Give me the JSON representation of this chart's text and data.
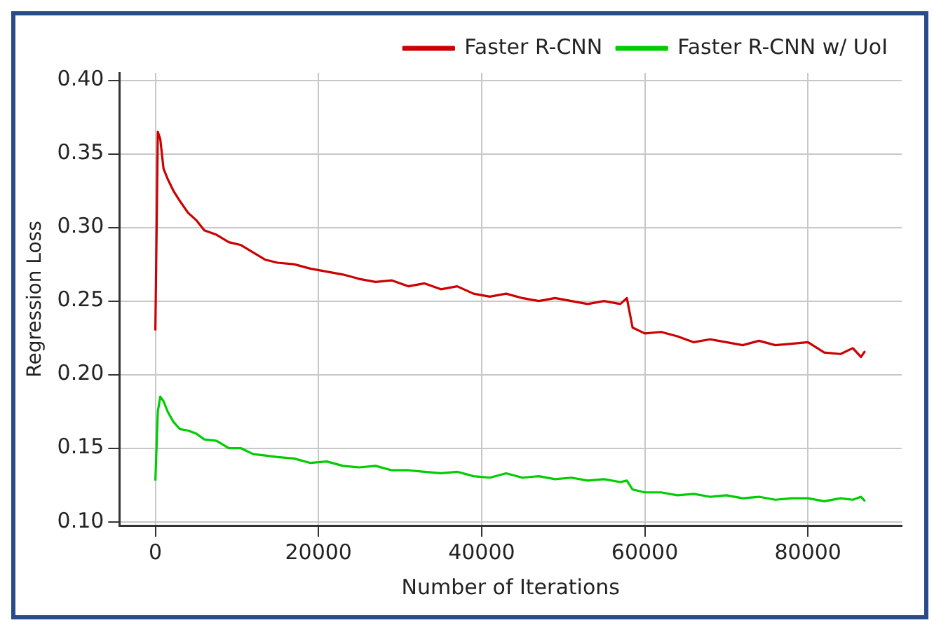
{
  "chart_data": {
    "type": "line",
    "xlabel": "Number of Iterations",
    "ylabel": "Regression Loss",
    "xlim": [
      -4400,
      91500
    ],
    "xticks": [
      0,
      20000,
      40000,
      60000,
      80000
    ],
    "ylim": [
      0.0975,
      0.405
    ],
    "yticks": [
      {
        "value": 0.1,
        "label": "0.10"
      },
      0.15,
      {
        "value": 0.2,
        "label": "0.20"
      },
      0.25,
      {
        "value": 0.3,
        "label": "0.30"
      },
      0.35,
      {
        "value": 0.4,
        "label": "0.40"
      }
    ],
    "grid": true,
    "legend": "top right",
    "marker": "none",
    "line_style": "solid",
    "series": [
      {
        "name": "Faster R-CNN",
        "color": "#cc0000",
        "x": [
          0,
          300,
          600,
          1000,
          1500,
          2200,
          3000,
          4000,
          5000,
          6000,
          7500,
          9000,
          10500,
          12000,
          13500,
          15000,
          17000,
          19000,
          21000,
          23000,
          25000,
          27000,
          29000,
          31000,
          33000,
          35000,
          37000,
          39000,
          41000,
          43000,
          45000,
          47000,
          49000,
          51000,
          53000,
          55000,
          57000,
          57800,
          58500,
          60000,
          62000,
          64000,
          66000,
          68000,
          70000,
          72000,
          74000,
          76000,
          78000,
          80000,
          82000,
          84000,
          85500,
          86500,
          87000
        ],
        "values": [
          0.23,
          0.365,
          0.36,
          0.34,
          0.333,
          0.325,
          0.318,
          0.31,
          0.305,
          0.298,
          0.295,
          0.29,
          0.288,
          0.283,
          0.278,
          0.276,
          0.275,
          0.272,
          0.27,
          0.268,
          0.265,
          0.263,
          0.264,
          0.26,
          0.262,
          0.258,
          0.26,
          0.255,
          0.253,
          0.255,
          0.252,
          0.25,
          0.252,
          0.25,
          0.248,
          0.25,
          0.248,
          0.252,
          0.232,
          0.228,
          0.229,
          0.226,
          0.222,
          0.224,
          0.222,
          0.22,
          0.223,
          0.22,
          0.221,
          0.222,
          0.215,
          0.214,
          0.218,
          0.212,
          0.216
        ]
      },
      {
        "name": "Faster R-CNN w/ UoI",
        "color": "#00cc00",
        "x": [
          0,
          300,
          600,
          1000,
          1500,
          2200,
          3000,
          4000,
          5000,
          6000,
          7500,
          9000,
          10500,
          12000,
          13500,
          15000,
          17000,
          19000,
          21000,
          23000,
          25000,
          27000,
          29000,
          31000,
          33000,
          35000,
          37000,
          39000,
          41000,
          43000,
          45000,
          47000,
          49000,
          51000,
          53000,
          55000,
          57000,
          57800,
          58500,
          60000,
          62000,
          64000,
          66000,
          68000,
          70000,
          72000,
          74000,
          76000,
          78000,
          80000,
          82000,
          84000,
          85500,
          86500,
          87000
        ],
        "values": [
          0.128,
          0.175,
          0.185,
          0.182,
          0.175,
          0.168,
          0.163,
          0.162,
          0.16,
          0.156,
          0.155,
          0.15,
          0.15,
          0.146,
          0.145,
          0.144,
          0.143,
          0.14,
          0.141,
          0.138,
          0.137,
          0.138,
          0.135,
          0.135,
          0.134,
          0.133,
          0.134,
          0.131,
          0.13,
          0.133,
          0.13,
          0.131,
          0.129,
          0.13,
          0.128,
          0.129,
          0.127,
          0.128,
          0.122,
          0.12,
          0.12,
          0.118,
          0.119,
          0.117,
          0.118,
          0.116,
          0.117,
          0.115,
          0.116,
          0.116,
          0.114,
          0.116,
          0.115,
          0.117,
          0.114
        ]
      }
    ]
  }
}
